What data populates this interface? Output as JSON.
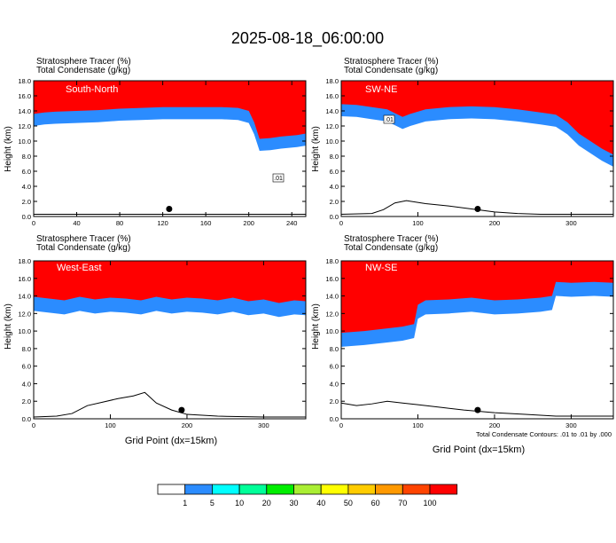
{
  "figure": {
    "title": "2025-08-18_06:00:00",
    "footnote": "Total Condensate Contours: .01 to .01 by .000"
  },
  "colorbar": {
    "colors": [
      "#ffffff",
      "#2b8cff",
      "#00ffff",
      "#00ff99",
      "#00ee00",
      "#aaee33",
      "#ffff00",
      "#ffcc00",
      "#ff9900",
      "#ff4400",
      "#ff0000"
    ],
    "labels": [
      "1",
      "5",
      "10",
      "20",
      "30",
      "40",
      "50",
      "60",
      "70",
      "100"
    ]
  },
  "chart_data": [
    {
      "type": "heatmap",
      "panel_label": "South-North",
      "field_labels": [
        "Stratosphere Tracer   (%)",
        "Total Condensate   (g/kg)"
      ],
      "ylabel": "Height (km)",
      "xlabel": "",
      "xlim": [
        0,
        253
      ],
      "ylim": [
        0,
        18
      ],
      "xticks": [
        0,
        40,
        80,
        120,
        160,
        200,
        240
      ],
      "yticks": [
        "0.0",
        "2.0",
        "4.0",
        "6.0",
        "8.0",
        "10.0",
        "12.0",
        "14.0",
        "16.0",
        "18.0"
      ],
      "tracer_boundary_km": [
        [
          0,
          13.6
        ],
        [
          10,
          13.8
        ],
        [
          20,
          13.9
        ],
        [
          40,
          14.0
        ],
        [
          60,
          14.1
        ],
        [
          80,
          14.3
        ],
        [
          100,
          14.4
        ],
        [
          120,
          14.5
        ],
        [
          150,
          14.5
        ],
        [
          175,
          14.5
        ],
        [
          190,
          14.4
        ],
        [
          200,
          14.0
        ],
        [
          205,
          12.5
        ],
        [
          210,
          10.3
        ],
        [
          220,
          10.4
        ],
        [
          230,
          10.6
        ],
        [
          245,
          10.8
        ],
        [
          253,
          11.0
        ]
      ],
      "terrain_km": [
        [
          0,
          0.3
        ],
        [
          50,
          0.3
        ],
        [
          100,
          0.3
        ],
        [
          150,
          0.3
        ],
        [
          200,
          0.3
        ],
        [
          253,
          0.3
        ]
      ],
      "marker": {
        "x": 126,
        "y": 1.0
      },
      "contour_label": ".01"
    },
    {
      "type": "heatmap",
      "panel_label": "SW-NE",
      "field_labels": [
        "Stratosphere Tracer   (%)",
        "Total Condensate   (g/kg)"
      ],
      "ylabel": "Height (km)",
      "xlabel": "",
      "xlim": [
        0,
        355
      ],
      "ylim": [
        0,
        18
      ],
      "xticks": [
        0,
        100,
        200,
        300
      ],
      "yticks": [
        "0.0",
        "2.0",
        "4.0",
        "6.0",
        "8.0",
        "10.0",
        "12.0",
        "14.0",
        "16.0",
        "18.0"
      ],
      "tracer_boundary_km": [
        [
          0,
          14.9
        ],
        [
          20,
          14.8
        ],
        [
          40,
          14.5
        ],
        [
          60,
          14.2
        ],
        [
          80,
          13.2
        ],
        [
          90,
          13.6
        ],
        [
          110,
          14.2
        ],
        [
          140,
          14.5
        ],
        [
          170,
          14.6
        ],
        [
          200,
          14.5
        ],
        [
          230,
          14.2
        ],
        [
          260,
          13.8
        ],
        [
          280,
          13.5
        ],
        [
          295,
          12.5
        ],
        [
          310,
          11.0
        ],
        [
          325,
          10.0
        ],
        [
          340,
          9.0
        ],
        [
          355,
          8.2
        ]
      ],
      "terrain_km": [
        [
          0,
          0.3
        ],
        [
          40,
          0.4
        ],
        [
          55,
          0.9
        ],
        [
          70,
          1.8
        ],
        [
          85,
          2.1
        ],
        [
          110,
          1.7
        ],
        [
          140,
          1.4
        ],
        [
          170,
          1.0
        ],
        [
          200,
          0.6
        ],
        [
          230,
          0.4
        ],
        [
          260,
          0.3
        ],
        [
          355,
          0.3
        ]
      ],
      "marker": {
        "x": 178,
        "y": 1.0
      },
      "contour_label": ".01"
    },
    {
      "type": "heatmap",
      "panel_label": "West-East",
      "field_labels": [
        "Stratosphere Tracer   (%)",
        "Total Condensate   (g/kg)"
      ],
      "ylabel": "Height (km)",
      "xlabel": "Grid Point (dx=15km)",
      "xlim": [
        0,
        355
      ],
      "ylim": [
        0,
        18
      ],
      "xticks": [
        0,
        100,
        200,
        300
      ],
      "yticks": [
        "0.0",
        "2.0",
        "4.0",
        "6.0",
        "8.0",
        "10.0",
        "12.0",
        "14.0",
        "16.0",
        "18.0"
      ],
      "tracer_boundary_km": [
        [
          0,
          13.9
        ],
        [
          20,
          13.7
        ],
        [
          40,
          13.5
        ],
        [
          60,
          13.9
        ],
        [
          80,
          13.6
        ],
        [
          100,
          13.8
        ],
        [
          120,
          13.7
        ],
        [
          140,
          13.5
        ],
        [
          160,
          13.9
        ],
        [
          180,
          13.6
        ],
        [
          200,
          13.8
        ],
        [
          220,
          13.7
        ],
        [
          240,
          13.5
        ],
        [
          260,
          13.8
        ],
        [
          280,
          13.4
        ],
        [
          300,
          13.6
        ],
        [
          320,
          13.2
        ],
        [
          340,
          13.5
        ],
        [
          355,
          13.4
        ]
      ],
      "terrain_km": [
        [
          0,
          0.2
        ],
        [
          30,
          0.3
        ],
        [
          50,
          0.6
        ],
        [
          70,
          1.5
        ],
        [
          90,
          1.9
        ],
        [
          110,
          2.3
        ],
        [
          130,
          2.6
        ],
        [
          145,
          3.0
        ],
        [
          160,
          1.8
        ],
        [
          180,
          1.0
        ],
        [
          200,
          0.5
        ],
        [
          240,
          0.3
        ],
        [
          300,
          0.2
        ],
        [
          355,
          0.2
        ]
      ],
      "marker": {
        "x": 193,
        "y": 1.0
      },
      "contour_label": ""
    },
    {
      "type": "heatmap",
      "panel_label": "NW-SE",
      "field_labels": [
        "Stratosphere Tracer   (%)",
        "Total Condensate   (g/kg)"
      ],
      "ylabel": "Height (km)",
      "xlabel": "Grid Point (dx=15km)",
      "xlim": [
        0,
        355
      ],
      "ylim": [
        0,
        18
      ],
      "xticks": [
        0,
        100,
        200,
        300
      ],
      "yticks": [
        "0.0",
        "2.0",
        "4.0",
        "6.0",
        "8.0",
        "10.0",
        "12.0",
        "14.0",
        "16.0",
        "18.0"
      ],
      "tracer_boundary_km": [
        [
          0,
          9.8
        ],
        [
          30,
          10.0
        ],
        [
          60,
          10.3
        ],
        [
          80,
          10.5
        ],
        [
          95,
          10.8
        ],
        [
          100,
          13.0
        ],
        [
          110,
          13.5
        ],
        [
          140,
          13.6
        ],
        [
          170,
          13.8
        ],
        [
          200,
          13.5
        ],
        [
          230,
          13.6
        ],
        [
          260,
          13.8
        ],
        [
          275,
          14.0
        ],
        [
          280,
          15.6
        ],
        [
          300,
          15.5
        ],
        [
          330,
          15.6
        ],
        [
          355,
          15.5
        ]
      ],
      "terrain_km": [
        [
          0,
          1.8
        ],
        [
          20,
          1.5
        ],
        [
          40,
          1.7
        ],
        [
          60,
          2.0
        ],
        [
          80,
          1.8
        ],
        [
          100,
          1.6
        ],
        [
          130,
          1.3
        ],
        [
          160,
          1.0
        ],
        [
          200,
          0.7
        ],
        [
          240,
          0.5
        ],
        [
          280,
          0.3
        ],
        [
          355,
          0.3
        ]
      ],
      "marker": {
        "x": 178,
        "y": 1.0
      },
      "contour_label": ""
    }
  ]
}
